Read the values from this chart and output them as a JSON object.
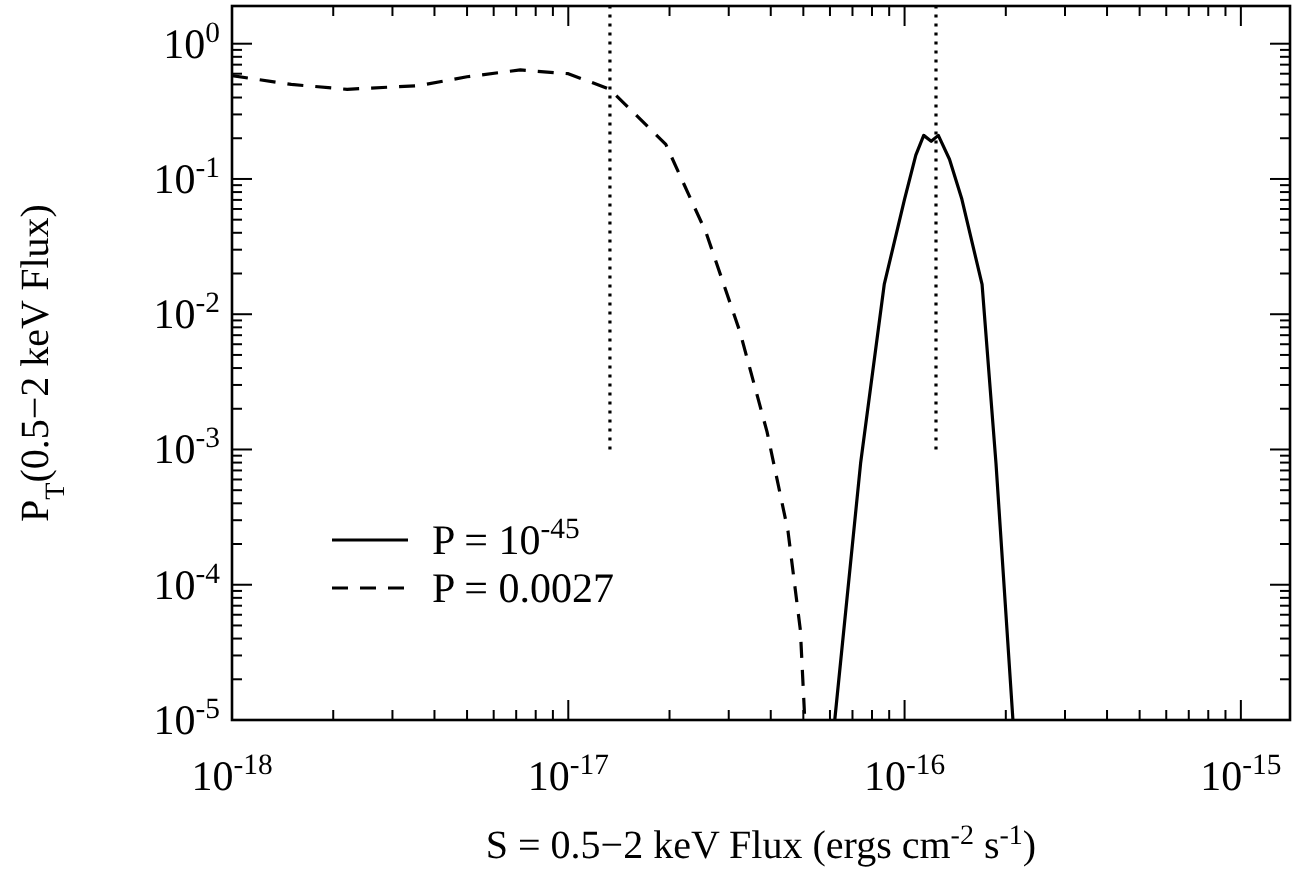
{
  "chart_data": {
    "type": "line",
    "xlabel": "S = 0.5−2 keV Flux (ergs cm$^{-2}$ s$^{-1}$)",
    "ylabel": "P$_{T}$(0.5−2 keV Flux)",
    "log": "xy",
    "legend": "bottom left",
    "xlim": [
      1e-18,
      1.4e-15
    ],
    "ylim": [
      1e-05,
      1.9
    ],
    "xticks": [
      {
        "value": 1e-18,
        "label": "10$^{-18}$"
      },
      {
        "value": 2e-18,
        "label": null
      },
      {
        "value": 3e-18,
        "label": null
      },
      {
        "value": 4e-18,
        "label": null
      },
      {
        "value": 5e-18,
        "label": null
      },
      {
        "value": 6e-18,
        "label": null
      },
      {
        "value": 7e-18,
        "label": null
      },
      {
        "value": 8e-18,
        "label": null
      },
      {
        "value": 9e-18,
        "label": null
      },
      {
        "value": 1e-17,
        "label": "10$^{-17}$"
      },
      {
        "value": 2e-17,
        "label": null
      },
      {
        "value": 3e-17,
        "label": null
      },
      {
        "value": 4e-17,
        "label": null
      },
      {
        "value": 5e-17,
        "label": null
      },
      {
        "value": 6e-17,
        "label": null
      },
      {
        "value": 7e-17,
        "label": null
      },
      {
        "value": 8e-17,
        "label": null
      },
      {
        "value": 9e-17,
        "label": null
      },
      {
        "value": 1e-16,
        "label": "10$^{-16}$"
      },
      {
        "value": 2e-16,
        "label": null
      },
      {
        "value": 3e-16,
        "label": null
      },
      {
        "value": 4e-16,
        "label": null
      },
      {
        "value": 5e-16,
        "label": null
      },
      {
        "value": 6e-16,
        "label": null
      },
      {
        "value": 7e-16,
        "label": null
      },
      {
        "value": 8e-16,
        "label": null
      },
      {
        "value": 9e-16,
        "label": null
      },
      {
        "value": 1e-15,
        "label": "10$^{-15}$"
      }
    ],
    "yticks": [
      {
        "value": 1e-05,
        "label": "10$^{-5}$"
      },
      {
        "value": 2e-05,
        "label": null
      },
      {
        "value": 3e-05,
        "label": null
      },
      {
        "value": 4e-05,
        "label": null
      },
      {
        "value": 5e-05,
        "label": null
      },
      {
        "value": 6e-05,
        "label": null
      },
      {
        "value": 7e-05,
        "label": null
      },
      {
        "value": 8e-05,
        "label": null
      },
      {
        "value": 9e-05,
        "label": null
      },
      {
        "value": 0.0001,
        "label": "10$^{-4}$"
      },
      {
        "value": 0.0002,
        "label": null
      },
      {
        "value": 0.0003,
        "label": null
      },
      {
        "value": 0.0004,
        "label": null
      },
      {
        "value": 0.0005,
        "label": null
      },
      {
        "value": 0.0006,
        "label": null
      },
      {
        "value": 0.0007,
        "label": null
      },
      {
        "value": 0.0008,
        "label": null
      },
      {
        "value": 0.0009,
        "label": null
      },
      {
        "value": 0.001,
        "label": "10$^{-3}$"
      },
      {
        "value": 0.002,
        "label": null
      },
      {
        "value": 0.003,
        "label": null
      },
      {
        "value": 0.004,
        "label": null
      },
      {
        "value": 0.005,
        "label": null
      },
      {
        "value": 0.006,
        "label": null
      },
      {
        "value": 0.007,
        "label": null
      },
      {
        "value": 0.008,
        "label": null
      },
      {
        "value": 0.009,
        "label": null
      },
      {
        "value": 0.01,
        "label": "10$^{-2}$"
      },
      {
        "value": 0.02,
        "label": null
      },
      {
        "value": 0.03,
        "label": null
      },
      {
        "value": 0.04,
        "label": null
      },
      {
        "value": 0.05,
        "label": null
      },
      {
        "value": 0.06,
        "label": null
      },
      {
        "value": 0.07,
        "label": null
      },
      {
        "value": 0.08,
        "label": null
      },
      {
        "value": 0.09,
        "label": null
      },
      {
        "value": 0.1,
        "label": "10$^{-1}$"
      },
      {
        "value": 0.2,
        "label": null
      },
      {
        "value": 0.3,
        "label": null
      },
      {
        "value": 0.4,
        "label": null
      },
      {
        "value": 0.5,
        "label": null
      },
      {
        "value": 0.6,
        "label": null
      },
      {
        "value": 0.7,
        "label": null
      },
      {
        "value": 0.8,
        "label": null
      },
      {
        "value": 0.9,
        "label": null
      },
      {
        "value": 1,
        "label": "10$^{0}$"
      }
    ],
    "series": [
      {
        "name": "P = 10$^{-45}$",
        "color": "#000000",
        "line_style": "solid",
        "x": [
          6.2e-17,
          7.4e-17,
          8.7e-17,
          1e-16,
          1.08e-16,
          1.14e-16,
          1.2e-16,
          1.26e-16,
          1.36e-16,
          1.48e-16,
          1.7e-16,
          1.87e-16,
          2.1e-16
        ],
        "values": [
          1e-05,
          0.00079,
          0.0166,
          0.071,
          0.15,
          0.21,
          0.19,
          0.21,
          0.14,
          0.071,
          0.0166,
          0.00079,
          1e-05
        ]
      },
      {
        "name": "P = 0.0027",
        "color": "#000000",
        "line_style": "dashed",
        "x": [
          1e-18,
          1.5e-18,
          2.2e-18,
          3.6e-18,
          5e-18,
          7.2e-18,
          1e-17,
          1.33e-17,
          1.95e-17,
          2.57e-17,
          3.24e-17,
          3.9e-17,
          4.5e-17,
          4.9e-17,
          5.05e-17
        ],
        "values": [
          0.58,
          0.5,
          0.46,
          0.49,
          0.57,
          0.64,
          0.6,
          0.46,
          0.18,
          0.04,
          0.0074,
          0.00135,
          0.00025,
          4.6e-05,
          1e-05
        ]
      },
      {
        "color": "#000000",
        "line_style": "dotted",
        "x": [
          1.33e-17,
          1.33e-17
        ],
        "values": [
          0.001,
          1.9
        ]
      },
      {
        "color": "#000000",
        "line_style": "dotted",
        "x": [
          1.24e-16,
          1.24e-16
        ],
        "values": [
          0.001,
          1.9
        ]
      }
    ]
  }
}
